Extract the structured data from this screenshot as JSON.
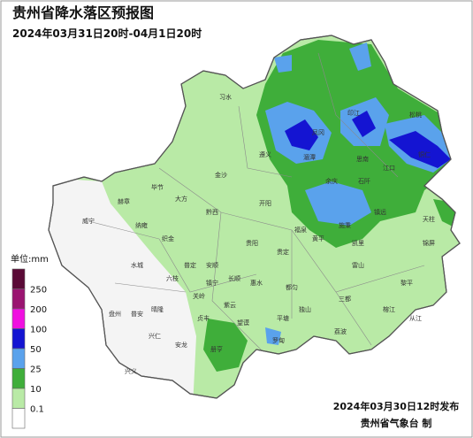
{
  "header": {
    "title": "贵州省降水落区预报图",
    "subtitle": "2024年03月31日20时-04月1日20时"
  },
  "legend": {
    "unit": "单位:mm",
    "levels": [
      "250",
      "200",
      "100",
      "50",
      "25",
      "10",
      "0.1"
    ],
    "colors": [
      "#5a0a36",
      "#9a1470",
      "#f010e0",
      "#1414d2",
      "#5aa2ec",
      "#3fae3a",
      "#b9eaa6",
      "#ffffff"
    ]
  },
  "places": [
    "威宁",
    "赫章",
    "毕节",
    "大方",
    "黔西",
    "金沙",
    "习水",
    "遵义",
    "湄潭",
    "凤冈",
    "思南",
    "印江",
    "江口",
    "松桃",
    "铜仁",
    "石阡",
    "余庆",
    "施秉",
    "镇远",
    "天柱",
    "锦屏",
    "黎平",
    "从江",
    "榕江",
    "雷山",
    "凯里",
    "黄平",
    "福泉",
    "贵定",
    "都匀",
    "三都",
    "荔波",
    "独山",
    "平塘",
    "罗甸",
    "惠水",
    "长顺",
    "贵阳",
    "开阳",
    "织金",
    "纳雍",
    "六枝",
    "普定",
    "安顺",
    "关岭",
    "镇宁",
    "紫云",
    "望谟",
    "册亨",
    "贞丰",
    "安龙",
    "兴义",
    "兴仁",
    "晴隆",
    "普安",
    "盘州",
    "水城"
  ],
  "footer": {
    "issued": "2024年03月30日12时发布",
    "issuer": "贵州省气象台 制"
  }
}
